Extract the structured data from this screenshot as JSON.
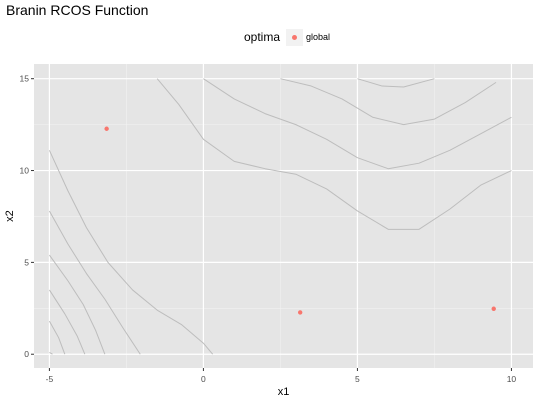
{
  "chart_data": {
    "type": "contour",
    "title": "Branin RCOS Function",
    "xlabel": "x1",
    "ylabel": "x2",
    "xlim": [
      -5.5,
      10.7
    ],
    "ylim": [
      -0.75,
      15.8
    ],
    "xticks": [
      -5,
      0,
      5,
      10
    ],
    "yticks": [
      0,
      5,
      10,
      15
    ],
    "minor_xticks": [
      -2.5,
      2.5,
      7.5
    ],
    "minor_yticks": [
      2.5,
      7.5,
      12.5
    ],
    "grid": true,
    "legend": {
      "title": "optima",
      "placement": "top",
      "entries": [
        {
          "label": "global",
          "color": "#f8766d"
        }
      ]
    },
    "contour_color": "#bdbdbd",
    "contour_lines": [
      {
        "x": [
          -5,
          -4.9
        ],
        "y": [
          0.1,
          0
        ]
      },
      {
        "x": [
          -5,
          -4.7,
          -4.5
        ],
        "y": [
          1.8,
          0.9,
          0
        ]
      },
      {
        "x": [
          -5,
          -4.5,
          -4.1,
          -3.85
        ],
        "y": [
          3.5,
          2.2,
          1.0,
          0
        ]
      },
      {
        "x": [
          -5,
          -4.4,
          -3.9,
          -3.5,
          -3.2
        ],
        "y": [
          5.4,
          4.0,
          2.7,
          1.3,
          0
        ]
      },
      {
        "x": [
          -5,
          -4.4,
          -3.8,
          -3.2,
          -2.6,
          -2.05
        ],
        "y": [
          7.8,
          6.0,
          4.4,
          3.0,
          1.4,
          0
        ]
      },
      {
        "x": [
          -5,
          -4.4,
          -3.8,
          -3.1,
          -2.3,
          -1.5,
          -0.7,
          0,
          0.3
        ],
        "y": [
          11.1,
          8.9,
          6.9,
          5.0,
          3.5,
          2.4,
          1.6,
          0.6,
          0
        ]
      },
      {
        "x": [
          -1.5,
          -0.8,
          0,
          1,
          2,
          3,
          4,
          5,
          6,
          7,
          8,
          9,
          10
        ],
        "y": [
          15.0,
          13.6,
          11.7,
          10.5,
          10.1,
          9.8,
          9.0,
          7.8,
          6.8,
          6.8,
          7.9,
          9.2,
          10.0
        ]
      },
      {
        "x": [
          0,
          1,
          2,
          3,
          4,
          5,
          6,
          7,
          8,
          9,
          10
        ],
        "y": [
          15.0,
          13.9,
          13.1,
          12.5,
          11.7,
          10.7,
          10.1,
          10.4,
          11.1,
          12.0,
          12.9
        ]
      },
      {
        "x": [
          2.5,
          3.5,
          4.5,
          5.5,
          6.5,
          7.5,
          8.5,
          9.5
        ],
        "y": [
          15.0,
          14.6,
          13.9,
          12.9,
          12.5,
          12.8,
          13.7,
          14.8
        ]
      },
      {
        "x": [
          5,
          5.8,
          6.5,
          7.5
        ],
        "y": [
          15.0,
          14.6,
          14.55,
          15.0
        ]
      }
    ],
    "series": [
      {
        "name": "global",
        "type": "scatter",
        "color": "#f8766d",
        "x": [
          -3.14159,
          3.14159,
          9.42478
        ],
        "y": [
          12.275,
          2.275,
          2.475
        ]
      }
    ]
  }
}
